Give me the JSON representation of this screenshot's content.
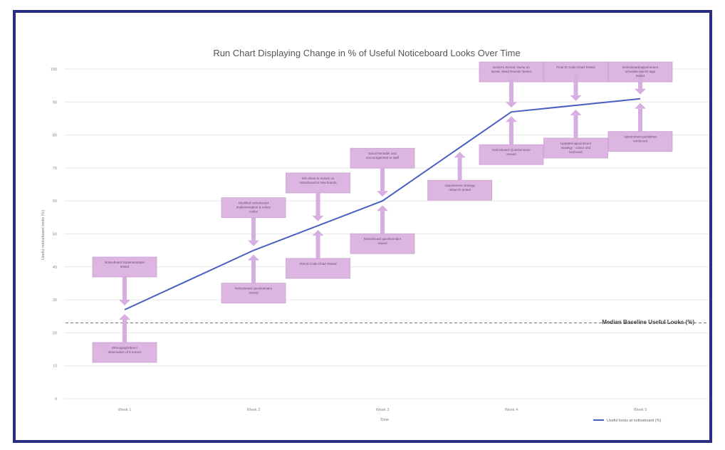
{
  "chart_data": {
    "type": "line",
    "title": "Run Chart Displaying Change in % of Useful Noticeboard Looks Over Time",
    "xlabel": "Time",
    "ylabel": "Useful noticeboard looks (%)",
    "categories": [
      "Week 1",
      "Week 2",
      "Week 3",
      "Week 4",
      "Week 5"
    ],
    "yticks": [
      "100",
      "90",
      "80",
      "70",
      "60",
      "50",
      "40",
      "30",
      "20",
      "10",
      "0"
    ],
    "ylim": [
      0,
      100
    ],
    "series": [
      {
        "name": "Useful looks at noticeboard (%)",
        "values": [
          27,
          45,
          60,
          87,
          91
        ],
        "color": "#4a5fc1"
      }
    ],
    "median": {
      "value": 23,
      "label": "Median Baseline Useful Looks (%)"
    },
    "annotations": [
      {
        "text": "Noticeboard implementation tested",
        "cat": 0,
        "side": "above"
      },
      {
        "text": "Ethnograph/direct observation of 5 nurses",
        "cat": 0,
        "side": "below"
      },
      {
        "text": "Modified noticeboard implementation & colour codes",
        "cat": 1,
        "side": "above"
      },
      {
        "text": "Noticeboard questionnaire issued",
        "cat": 1,
        "side": "below"
      },
      {
        "text": "Info sheet to nurses on noticeboard & new boards",
        "cat": 1.5,
        "side": "above"
      },
      {
        "text": "Flat ID Code Chart Tested",
        "cat": 1.5,
        "side": "below"
      },
      {
        "text": "Email reminder and encouragement to staff",
        "cat": 2,
        "side": "above"
      },
      {
        "text": "Noticeboard questionnaire issued",
        "cat": 2,
        "side": "below"
      },
      {
        "text": "Appointment strategy relaunch tested",
        "cat": 2.6,
        "side": "below"
      },
      {
        "text": "Doctor's Round, Nurse on Break, Ward Rounds Tested",
        "cat": 3,
        "side": "above"
      },
      {
        "text": "Noticeboard Questionnaire Issued",
        "cat": 3,
        "side": "below"
      },
      {
        "text": "Final ID Code Chart Tested",
        "cat": 3.5,
        "side": "above"
      },
      {
        "text": "Updated appointment strategy - colour and keyboard",
        "cat": 3.5,
        "side": "below"
      },
      {
        "text": "Noticeboard appointment schedule and ID tags tested",
        "cat": 4,
        "side": "above"
      },
      {
        "text": "Appointment guidelines reinforced",
        "cat": 4,
        "side": "below"
      }
    ]
  }
}
